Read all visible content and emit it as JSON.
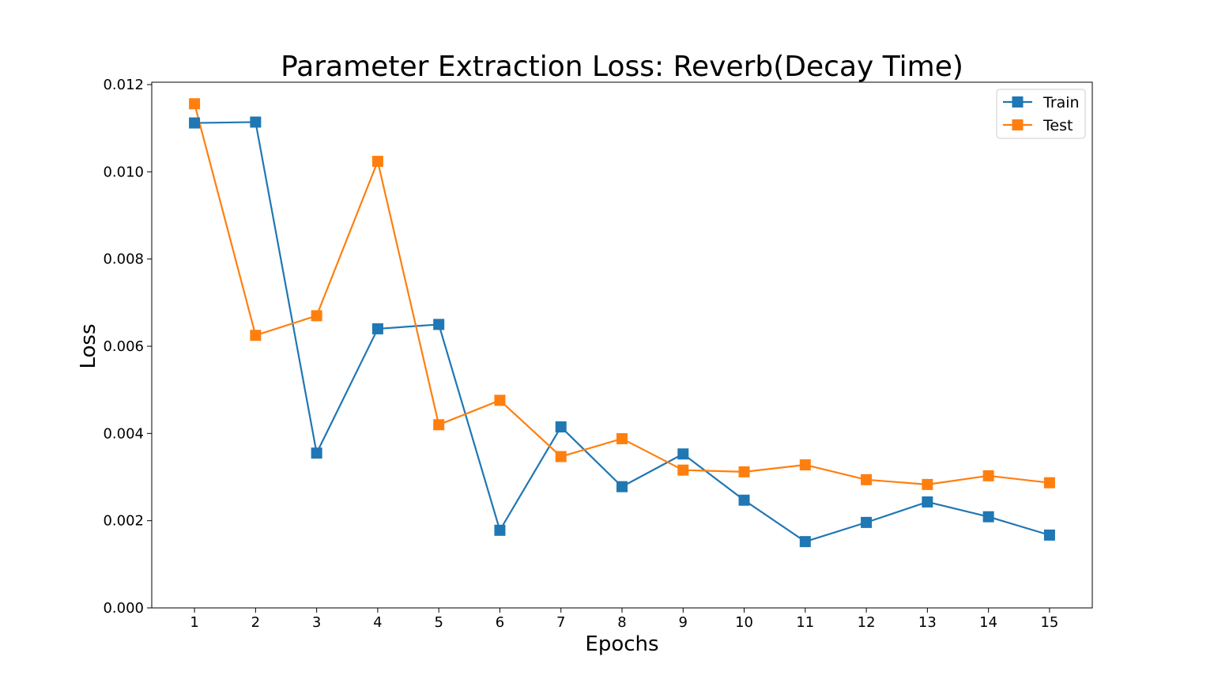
{
  "chart_data": {
    "type": "line",
    "title": "Parameter Extraction Loss: Reverb(Decay Time)",
    "xlabel": "Epochs",
    "ylabel": "Loss",
    "x": [
      1,
      2,
      3,
      4,
      5,
      6,
      7,
      8,
      9,
      10,
      11,
      12,
      13,
      14,
      15
    ],
    "x_tick_labels": [
      "1",
      "2",
      "3",
      "4",
      "5",
      "6",
      "7",
      "8",
      "9",
      "10",
      "11",
      "12",
      "13",
      "14",
      "15"
    ],
    "ylim": [
      0.0,
      0.012
    ],
    "y_ticks": [
      0.0,
      0.002,
      0.004,
      0.006,
      0.008,
      0.01,
      0.012
    ],
    "y_tick_labels": [
      "0.000",
      "0.002",
      "0.004",
      "0.006",
      "0.008",
      "0.010",
      "0.012"
    ],
    "grid": false,
    "legend_position": "top-right",
    "marker": "square",
    "series": [
      {
        "name": "Train",
        "color": "#1f77b4",
        "values": [
          0.01112,
          0.01114,
          0.00355,
          0.0064,
          0.0065,
          0.00178,
          0.00415,
          0.00278,
          0.00353,
          0.00247,
          0.00152,
          0.00196,
          0.00243,
          0.00209,
          0.00167
        ]
      },
      {
        "name": "Test",
        "color": "#ff7f0e",
        "values": [
          0.01156,
          0.00625,
          0.0067,
          0.01024,
          0.0042,
          0.00476,
          0.00347,
          0.00388,
          0.00316,
          0.00312,
          0.00328,
          0.00294,
          0.00283,
          0.00303,
          0.00287
        ]
      }
    ]
  }
}
